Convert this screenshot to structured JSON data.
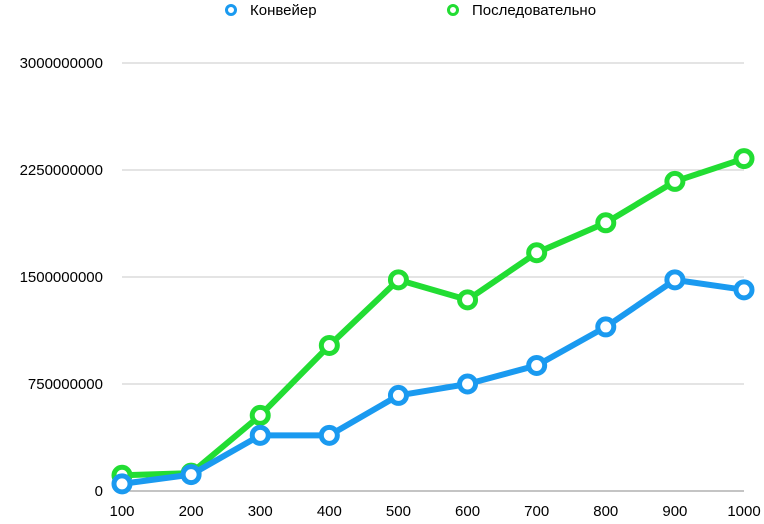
{
  "chart_data": {
    "type": "line",
    "title": "",
    "xlabel": "",
    "ylabel": "",
    "x": [
      100,
      200,
      300,
      400,
      500,
      600,
      700,
      800,
      900,
      1000
    ],
    "ylim": [
      0,
      3000000000
    ],
    "yticks": [
      0,
      750000000,
      1500000000,
      2250000000,
      3000000000
    ],
    "grid": true,
    "legend_position": "top",
    "series": [
      {
        "name": "Конвейер",
        "color": "#1a9af0",
        "values": [
          50000000,
          115000000,
          390000000,
          390000000,
          670000000,
          750000000,
          880000000,
          1150000000,
          1480000000,
          1410000000
        ]
      },
      {
        "name": "Последовательно",
        "color": "#22dd33",
        "values": [
          110000000,
          125000000,
          530000000,
          1020000000,
          1480000000,
          1340000000,
          1670000000,
          1880000000,
          2170000000,
          2330000000
        ]
      }
    ]
  }
}
